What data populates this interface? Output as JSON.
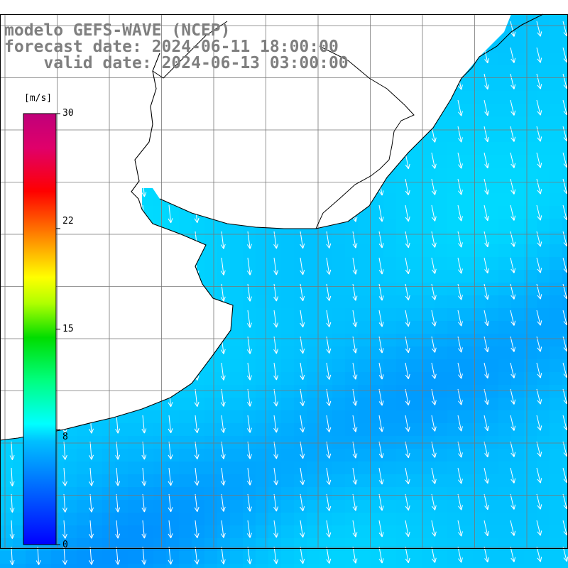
{
  "title": {
    "line1": "modelo GEFS-WAVE (NCEP)",
    "line2": "forecast date: 2024-06-11 18:00:00",
    "line3": "    valid date: 2024-06-13 03:00:00"
  },
  "colorbar": {
    "unit": "[m/s]",
    "min": 0,
    "max": 30,
    "tick_labels": [
      "30",
      "22",
      "15",
      "8",
      "0"
    ],
    "tick_values": [
      30,
      22,
      15,
      8,
      0
    ]
  },
  "colors": {
    "land": "#ffffff",
    "coastline": "#000000",
    "grid": "#777777",
    "title_text": "#7f7f7f",
    "arrow": "#ffffff"
  },
  "map": {
    "field": "wind speed and direction",
    "typical_speed_range_ms": [
      5,
      8
    ],
    "arrow_direction": "south to south-southeast"
  }
}
